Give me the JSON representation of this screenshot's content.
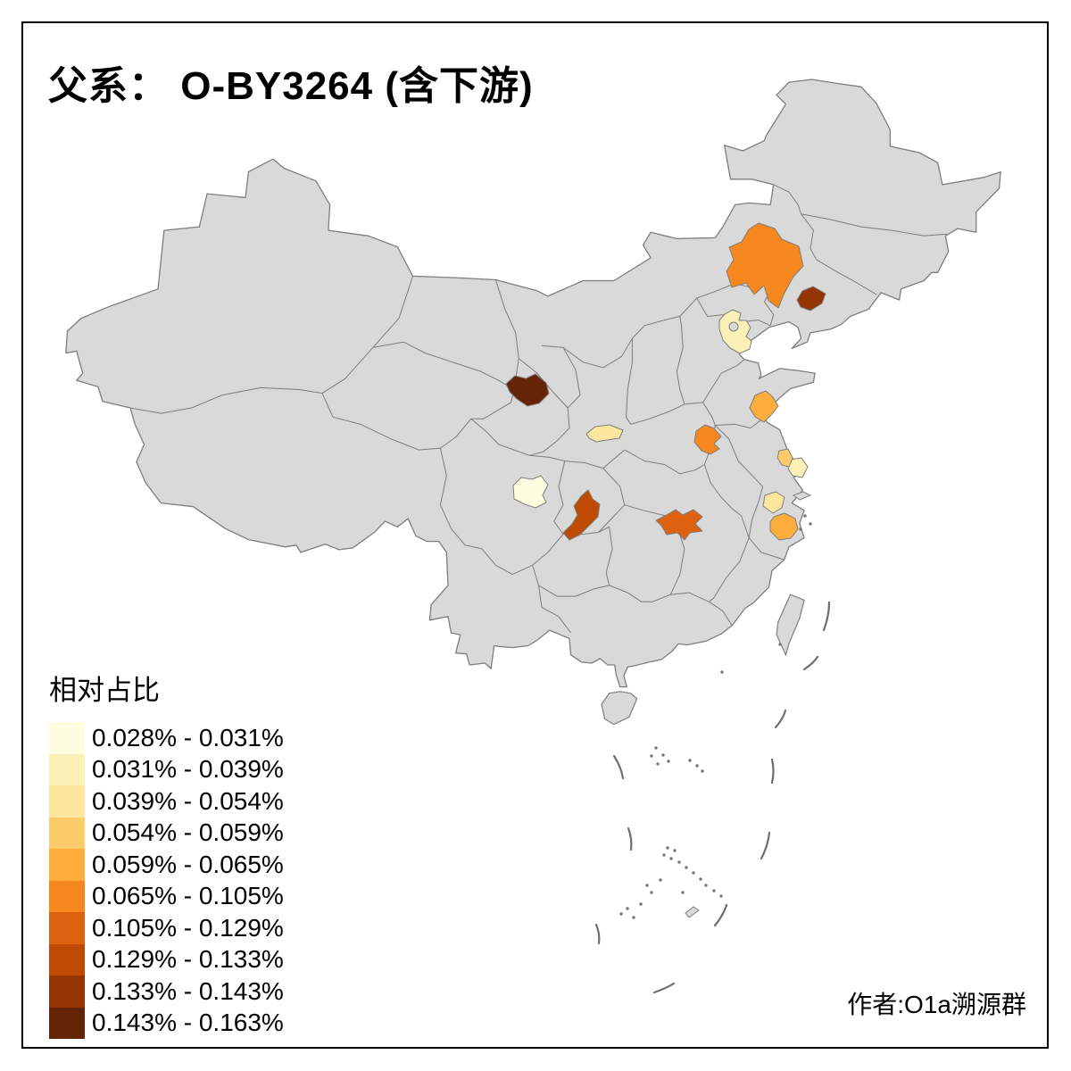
{
  "title": "父系： O-BY3264 (含下游)",
  "attribution": "作者:O1a溯源群",
  "legend": {
    "title": "相对占比",
    "bins": [
      {
        "label": "0.028% - 0.031%",
        "color": "#FFFDE0"
      },
      {
        "label": "0.031% - 0.039%",
        "color": "#FBF1B6"
      },
      {
        "label": "0.039% - 0.054%",
        "color": "#FDE69D"
      },
      {
        "label": "0.054% - 0.059%",
        "color": "#FDCC6A"
      },
      {
        "label": "0.059% - 0.065%",
        "color": "#FCAD3C"
      },
      {
        "label": "0.065% - 0.105%",
        "color": "#F5871E"
      },
      {
        "label": "0.105% - 0.129%",
        "color": "#DD620F"
      },
      {
        "label": "0.129% - 0.133%",
        "color": "#BF4A04"
      },
      {
        "label": "0.133% - 0.143%",
        "color": "#963504"
      },
      {
        "label": "0.143% - 0.163%",
        "color": "#662407"
      }
    ]
  },
  "map": {
    "background_color": "#FFFFFF",
    "land_color": "#D9D9D9",
    "boundary_color": "#7E7E7E",
    "frame_color": "#000000",
    "regions": [
      {
        "id": "chengdu-area",
        "bin": 1
      },
      {
        "id": "beijing-area",
        "bin": 2
      },
      {
        "id": "nantong-area",
        "bin": 2
      },
      {
        "id": "taihu-area",
        "bin": 3
      },
      {
        "id": "guanzhong-area",
        "bin": 3
      },
      {
        "id": "central-jiangsu-area",
        "bin": 4
      },
      {
        "id": "central-shandong-area",
        "bin": 5
      },
      {
        "id": "hangzhou-area",
        "bin": 5
      },
      {
        "id": "chifeng-area",
        "bin": 6
      },
      {
        "id": "east-henan-area",
        "bin": 6
      },
      {
        "id": "east-hubei-area",
        "bin": 7
      },
      {
        "id": "chongqing-area",
        "bin": 8
      },
      {
        "id": "west-liaoning-area",
        "bin": 9
      },
      {
        "id": "hexi-gansu-area",
        "bin": 10
      }
    ]
  }
}
